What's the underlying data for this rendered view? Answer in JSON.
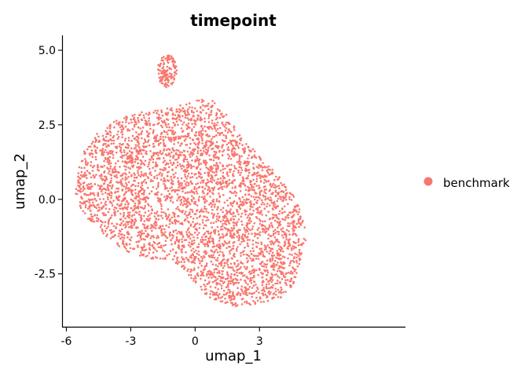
{
  "chart_data": {
    "type": "scatter",
    "title": "timepoint",
    "xlabel": "umap_1",
    "ylabel": "umap_2",
    "xlim": [
      -6.2,
      9.8
    ],
    "ylim": [
      -4.3,
      5.5
    ],
    "x_ticks": [
      -6,
      -3,
      0,
      3
    ],
    "x_tick_labels": [
      "-6",
      "-3",
      "0",
      "3"
    ],
    "y_ticks": [
      -2.5,
      0,
      2.5,
      5
    ],
    "y_tick_labels": [
      "-2.5",
      "0.0",
      "2.5",
      "5.0"
    ],
    "grid": false,
    "legend_position": "right",
    "series": [
      {
        "name": "benchmark",
        "color": "#f8766d",
        "approx_point_count": 4000,
        "regions": [
          {
            "shape": "polygon",
            "weight": 0.97,
            "vertices": [
              [
                -5.5,
                0.9
              ],
              [
                -5.2,
                1.6
              ],
              [
                -4.6,
                2.2
              ],
              [
                -3.8,
                2.6
              ],
              [
                -2.8,
                2.9
              ],
              [
                -1.6,
                3.0
              ],
              [
                -0.4,
                3.2
              ],
              [
                0.2,
                3.4
              ],
              [
                0.9,
                3.3
              ],
              [
                1.5,
                2.8
              ],
              [
                2.3,
                2.0
              ],
              [
                3.2,
                1.3
              ],
              [
                4.0,
                0.7
              ],
              [
                4.6,
                0.1
              ],
              [
                5.1,
                -0.7
              ],
              [
                5.2,
                -1.2
              ],
              [
                4.9,
                -2.2
              ],
              [
                4.6,
                -2.9
              ],
              [
                4.0,
                -3.3
              ],
              [
                3.0,
                -3.5
              ],
              [
                1.8,
                -3.6
              ],
              [
                0.6,
                -3.3
              ],
              [
                0.0,
                -2.8
              ],
              [
                -0.6,
                -2.3
              ],
              [
                -1.2,
                -2.0
              ],
              [
                -2.0,
                -2.0
              ],
              [
                -3.0,
                -1.8
              ],
              [
                -4.0,
                -1.4
              ],
              [
                -4.8,
                -0.8
              ],
              [
                -5.3,
                -0.4
              ],
              [
                -5.6,
                0.2
              ]
            ]
          },
          {
            "shape": "ellipse",
            "weight": 0.03,
            "cx": -1.3,
            "cy": 4.3,
            "rx": 0.45,
            "ry": 0.55
          }
        ]
      }
    ]
  }
}
